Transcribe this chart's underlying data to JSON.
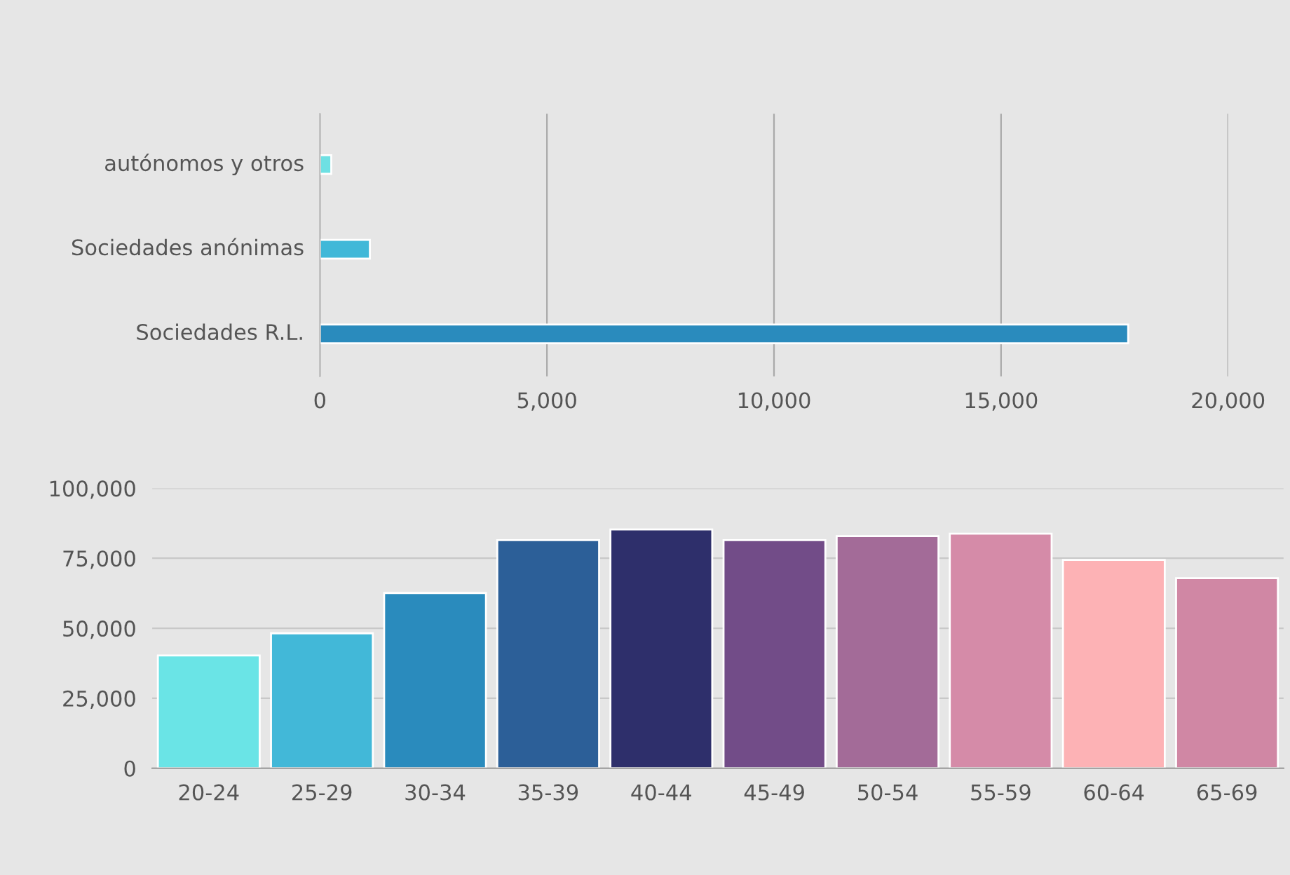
{
  "chart_data": [
    {
      "type": "bar",
      "orientation": "horizontal",
      "categories": [
        "autónomos y otros",
        "Sociedades anónimas",
        "Sociedades R.L."
      ],
      "values": [
        250,
        1100,
        17800
      ],
      "colors": [
        "#6ee0e3",
        "#40b8d8",
        "#2a8bbd"
      ],
      "xlim": [
        0,
        20000
      ],
      "xticks": [
        {
          "value": 0,
          "label": "0"
        },
        {
          "value": 5000,
          "label": "5,000"
        },
        {
          "value": 10000,
          "label": "10,000"
        },
        {
          "value": 15000,
          "label": "15,000"
        },
        {
          "value": 20000,
          "label": "20,000"
        }
      ],
      "grid": "x",
      "legend": false
    },
    {
      "type": "bar",
      "categories": [
        "20-24",
        "25-29",
        "30-34",
        "35-39",
        "40-44",
        "45-49",
        "50-54",
        "55-59",
        "60-64",
        "65-69"
      ],
      "values": [
        40300,
        48200,
        62600,
        81500,
        85300,
        81500,
        82900,
        83800,
        74400,
        67900
      ],
      "colors": [
        "#6ae4e6",
        "#42b8d8",
        "#2a8bbd",
        "#2c5f98",
        "#2e2f6b",
        "#724c88",
        "#a36b98",
        "#d58ba8",
        "#fdb2b5",
        "#d087a4"
      ],
      "ylim": [
        0,
        100000
      ],
      "yticks": [
        {
          "value": 0,
          "label": "0"
        },
        {
          "value": 25000,
          "label": "25,000"
        },
        {
          "value": 50000,
          "label": "50,000"
        },
        {
          "value": 75000,
          "label": "75,000"
        },
        {
          "value": 100000,
          "label": "100,000"
        }
      ],
      "grid": "y",
      "legend": false
    }
  ]
}
